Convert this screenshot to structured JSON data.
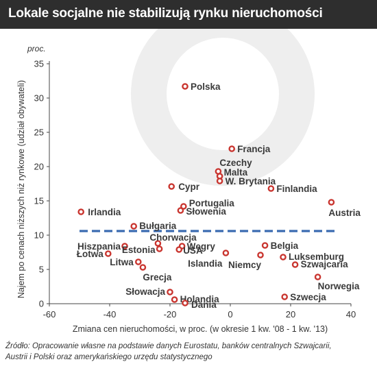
{
  "header": {
    "title": "Lokale socjalne nie stabilizują rynku nieruchomości"
  },
  "source": {
    "line1": "Źródło: Opracowanie własne na podstawie danych Eurostatu, banków centralnych Szwajcarii,",
    "line2": "Austrii i Polski oraz amerykańskiego urzędu statystycznego"
  },
  "colors": {
    "point_stroke": "#c9352f",
    "dashed_line": "#3a6ab0",
    "axis": "#444444",
    "text": "#333333",
    "watermark": "#eeeeee"
  },
  "chart_data": {
    "type": "scatter",
    "xlabel": "Zmiana cen nieruchomości, w proc. (w okresie 1 kw. '08 - 1 kw. '13)",
    "ylabel": "Najem po cenach niższych niż rynkowe (udział obywateli)",
    "yunit": "proc.",
    "xlim": [
      -60,
      40
    ],
    "ylim": [
      0,
      35
    ],
    "xticks": [
      "-60",
      "-40",
      "-20",
      "0",
      "20",
      "40"
    ],
    "yticks": [
      "0",
      "5",
      "10",
      "15",
      "20",
      "25",
      "30",
      "35"
    ],
    "grid": false,
    "reference_line": {
      "y": 10.6,
      "x_from": -50,
      "x_to": 35,
      "style": "dashed"
    },
    "points": [
      {
        "label": "Polska",
        "x": -15,
        "y": 31.7
      },
      {
        "label": "Francja",
        "x": 0.5,
        "y": 22.6
      },
      {
        "label": "Czechy",
        "x": -4,
        "y": 19.3
      },
      {
        "label": "Malta",
        "x": -3.5,
        "y": 18.6
      },
      {
        "label": "W. Brytania",
        "x": -3.5,
        "y": 17.9
      },
      {
        "label": "Finlandia",
        "x": 13.5,
        "y": 16.8
      },
      {
        "label": "Cypr",
        "x": -19.5,
        "y": 17.1
      },
      {
        "label": "Irlandia",
        "x": -49.5,
        "y": 13.4
      },
      {
        "label": "Austria",
        "x": 33.5,
        "y": 14.8
      },
      {
        "label": "Portugalia",
        "x": -15.5,
        "y": 14.2
      },
      {
        "label": "Słowenia",
        "x": -16.5,
        "y": 13.6
      },
      {
        "label": "Bułgaria",
        "x": -32,
        "y": 11.3
      },
      {
        "label": "Chorwacja",
        "x": -24,
        "y": 8.8
      },
      {
        "label": "Hiszpania",
        "x": -35,
        "y": 8.4
      },
      {
        "label": "Estonia",
        "x": -23.5,
        "y": 8.0
      },
      {
        "label": "Węgry",
        "x": -16,
        "y": 8.4
      },
      {
        "label": "USA",
        "x": -17,
        "y": 7.9
      },
      {
        "label": "Łotwa",
        "x": -40.5,
        "y": 7.3
      },
      {
        "label": "Islandia",
        "x": -1.5,
        "y": 7.4
      },
      {
        "label": "Belgia",
        "x": 11.5,
        "y": 8.5
      },
      {
        "label": "Niemcy",
        "x": 10,
        "y": 7.1
      },
      {
        "label": "Luksemburg",
        "x": 17.5,
        "y": 6.8
      },
      {
        "label": "Szwajcaria",
        "x": 21.5,
        "y": 5.7
      },
      {
        "label": "Litwa",
        "x": -30.5,
        "y": 6.1
      },
      {
        "label": "Grecja",
        "x": -29,
        "y": 5.3
      },
      {
        "label": "Norwegia",
        "x": 29,
        "y": 3.9
      },
      {
        "label": "Słowacja",
        "x": -20,
        "y": 1.7
      },
      {
        "label": "Holandia",
        "x": -18.5,
        "y": 0.6
      },
      {
        "label": "Szwecja",
        "x": 18,
        "y": 1.0
      },
      {
        "label": "Dania",
        "x": -15,
        "y": 0.1
      }
    ]
  }
}
